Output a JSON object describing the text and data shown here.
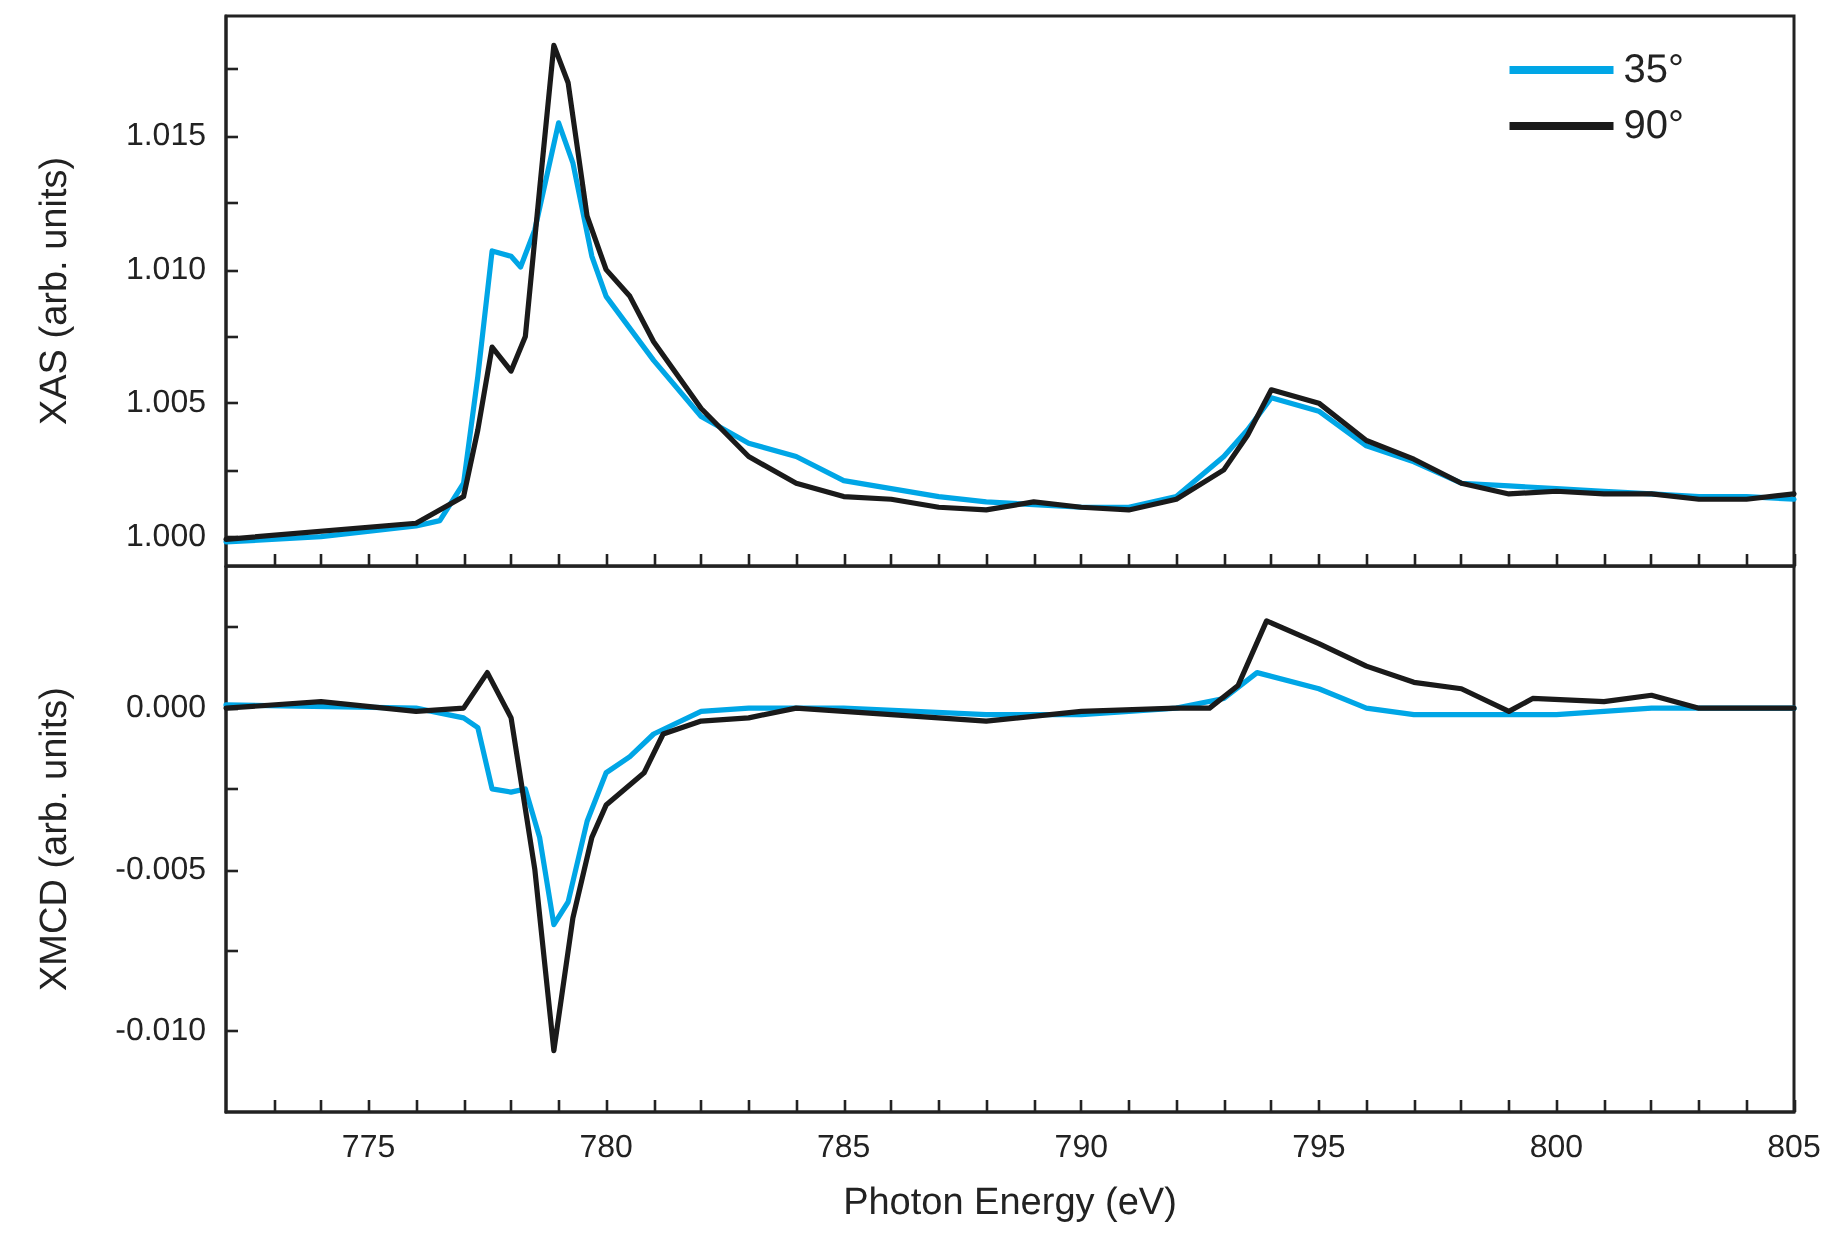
{
  "chart_data": [
    {
      "type": "line",
      "ylabel": "XAS (arb. units)",
      "legend": "top right",
      "tick_labels": "y",
      "xlim": [
        772,
        805
      ],
      "xticks": [
        {
          "value": 773,
          "label": null
        },
        {
          "value": 774,
          "label": null
        },
        775,
        {
          "value": 776,
          "label": null
        },
        {
          "value": 777,
          "label": null
        },
        {
          "value": 778,
          "label": null
        },
        {
          "value": 779,
          "label": null
        },
        780,
        {
          "value": 781,
          "label": null
        },
        {
          "value": 782,
          "label": null
        },
        {
          "value": 783,
          "label": null
        },
        {
          "value": 784,
          "label": null
        },
        785,
        {
          "value": 786,
          "label": null
        },
        {
          "value": 787,
          "label": null
        },
        {
          "value": 788,
          "label": null
        },
        {
          "value": 789,
          "label": null
        },
        790,
        {
          "value": 791,
          "label": null
        },
        {
          "value": 792,
          "label": null
        },
        {
          "value": 793,
          "label": null
        },
        {
          "value": 794,
          "label": null
        },
        795,
        {
          "value": 796,
          "label": null
        },
        {
          "value": 797,
          "label": null
        },
        {
          "value": 798,
          "label": null
        },
        {
          "value": 799,
          "label": null
        },
        800,
        {
          "value": 801,
          "label": null
        },
        {
          "value": 802,
          "label": null
        },
        {
          "value": 803,
          "label": null
        },
        {
          "value": 804,
          "label": null
        },
        805
      ],
      "ylim": [
        0.9989,
        1.0195
      ],
      "yticks": [
        {
          "value": 1.0,
          "label": "1.000"
        },
        {
          "value": 1.0025,
          "label": null
        },
        {
          "value": 1.005,
          "label": "1.005"
        },
        {
          "value": 1.0075,
          "label": null
        },
        {
          "value": 1.01,
          "label": "1.010"
        },
        {
          "value": 1.0125,
          "label": null
        },
        {
          "value": 1.015,
          "label": "1.015"
        },
        {
          "value": 1.0175,
          "label": null
        }
      ],
      "series": [
        {
          "name": "35°",
          "color": "#00a6e6",
          "x": [
            772,
            774,
            776,
            776.5,
            777,
            777.3,
            777.6,
            778,
            778.2,
            778.5,
            779,
            779.3,
            779.7,
            780,
            781,
            782,
            783,
            784,
            785,
            786,
            787,
            788,
            789,
            790,
            791,
            792,
            793,
            793.5,
            794,
            795,
            796,
            797,
            798,
            799,
            800,
            801,
            802,
            803,
            804,
            805
          ],
          "values": [
            0.9998,
            1.0,
            1.0004,
            1.0006,
            1.002,
            1.006,
            1.0107,
            1.0105,
            1.0101,
            1.0115,
            1.0155,
            1.014,
            1.0105,
            1.009,
            1.0066,
            1.0045,
            1.0035,
            1.003,
            1.0021,
            1.0018,
            1.0015,
            1.0013,
            1.0012,
            1.0011,
            1.0011,
            1.0015,
            1.003,
            1.004,
            1.0052,
            1.0047,
            1.0034,
            1.0028,
            1.002,
            1.0019,
            1.0018,
            1.0017,
            1.0016,
            1.0015,
            1.0015,
            1.0014
          ]
        },
        {
          "name": "90°",
          "color": "#1a1a1a",
          "x": [
            772,
            776,
            777,
            777.3,
            777.6,
            778,
            778.3,
            778.6,
            778.9,
            779.2,
            779.6,
            780,
            780.5,
            781,
            782,
            783,
            784,
            785,
            786,
            787,
            788,
            789,
            790,
            791,
            792,
            793,
            793.5,
            794,
            795,
            796,
            797,
            798,
            799,
            800,
            801,
            802,
            803,
            804,
            805
          ],
          "values": [
            0.9999,
            1.0005,
            1.0015,
            1.004,
            1.0071,
            1.0062,
            1.0075,
            1.013,
            1.0184,
            1.017,
            1.012,
            1.01,
            1.009,
            1.0073,
            1.0048,
            1.003,
            1.002,
            1.0015,
            1.0014,
            1.0011,
            1.001,
            1.0013,
            1.0011,
            1.001,
            1.0014,
            1.0025,
            1.0038,
            1.0055,
            1.005,
            1.0036,
            1.0029,
            1.002,
            1.0016,
            1.0017,
            1.0016,
            1.0016,
            1.0014,
            1.0014,
            1.0016
          ]
        }
      ]
    },
    {
      "type": "line",
      "xlabel": "Photon Energy (eV)",
      "ylabel": "XMCD (arb. units)",
      "xlim": [
        772,
        805
      ],
      "xticks": [
        {
          "value": 773,
          "label": null
        },
        {
          "value": 774,
          "label": null
        },
        775,
        {
          "value": 776,
          "label": null
        },
        {
          "value": 777,
          "label": null
        },
        {
          "value": 778,
          "label": null
        },
        {
          "value": 779,
          "label": null
        },
        780,
        {
          "value": 781,
          "label": null
        },
        {
          "value": 782,
          "label": null
        },
        {
          "value": 783,
          "label": null
        },
        {
          "value": 784,
          "label": null
        },
        785,
        {
          "value": 786,
          "label": null
        },
        {
          "value": 787,
          "label": null
        },
        {
          "value": 788,
          "label": null
        },
        {
          "value": 789,
          "label": null
        },
        790,
        {
          "value": 791,
          "label": null
        },
        {
          "value": 792,
          "label": null
        },
        {
          "value": 793,
          "label": null
        },
        {
          "value": 794,
          "label": null
        },
        795,
        {
          "value": 796,
          "label": null
        },
        {
          "value": 797,
          "label": null
        },
        {
          "value": 798,
          "label": null
        },
        {
          "value": 799,
          "label": null
        },
        800,
        {
          "value": 801,
          "label": null
        },
        {
          "value": 802,
          "label": null
        },
        {
          "value": 803,
          "label": null
        },
        {
          "value": 804,
          "label": null
        },
        805
      ],
      "ylim": [
        -0.0125,
        0.0044
      ],
      "yticks": [
        {
          "value": -0.01,
          "label": "-0.010"
        },
        {
          "value": -0.0075,
          "label": null
        },
        {
          "value": -0.005,
          "label": "-0.005"
        },
        {
          "value": -0.0025,
          "label": null
        },
        {
          "value": 0,
          "label": "0.000"
        },
        {
          "value": 0.0025,
          "label": null
        }
      ],
      "series": [
        {
          "color": "#00a6e6",
          "x": [
            772,
            776,
            777,
            777.3,
            777.6,
            778,
            778.3,
            778.6,
            778.9,
            779.2,
            779.6,
            780,
            780.5,
            781,
            782,
            783,
            785,
            788,
            790,
            792,
            793,
            793.7,
            795,
            796,
            797,
            798,
            800,
            802,
            805
          ],
          "values": [
            0.0001,
            0.0,
            -0.0003,
            -0.0006,
            -0.0025,
            -0.0026,
            -0.0025,
            -0.004,
            -0.0067,
            -0.006,
            -0.0035,
            -0.002,
            -0.0015,
            -0.0008,
            -0.0001,
            0.0,
            0.0,
            -0.0002,
            -0.0002,
            0.0,
            0.0003,
            0.0011,
            0.0006,
            0.0,
            -0.0002,
            -0.0002,
            -0.0002,
            0.0,
            0.0
          ]
        },
        {
          "color": "#1a1a1a",
          "x": [
            772,
            774,
            776,
            777,
            777.5,
            778,
            778.5,
            778.9,
            779.3,
            779.7,
            780,
            780.8,
            781.2,
            782,
            783,
            784,
            786,
            788,
            790,
            792,
            792.7,
            793.3,
            793.9,
            795,
            796,
            797,
            798,
            799,
            799.5,
            801,
            802,
            803,
            805
          ],
          "values": [
            0.0,
            0.0002,
            -0.0001,
            0.0,
            0.0011,
            -0.0003,
            -0.005,
            -0.0106,
            -0.0065,
            -0.004,
            -0.003,
            -0.002,
            -0.0008,
            -0.0004,
            -0.0003,
            0.0,
            -0.0002,
            -0.0004,
            -0.0001,
            0.0,
            0.0,
            0.0007,
            0.0027,
            0.002,
            0.0013,
            0.0008,
            0.0006,
            -0.0001,
            0.0003,
            0.0002,
            0.0004,
            0.0,
            0.0
          ]
        }
      ]
    }
  ]
}
